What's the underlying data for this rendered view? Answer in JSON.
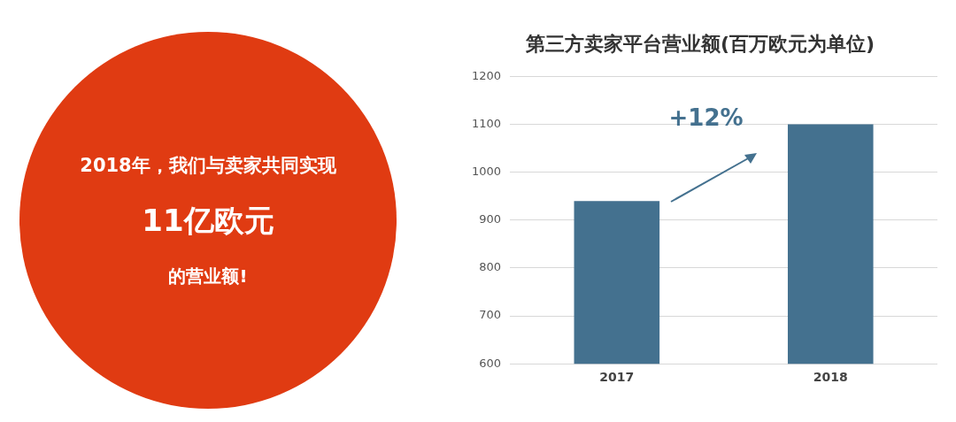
{
  "chart_data": [
    {
      "type": "other",
      "annotations": [
        "2018年，我们与卖家共同实现",
        "11亿欧元",
        "的营业额!"
      ]
    },
    {
      "type": "bar",
      "title": "第三方卖家平台营业额(百万欧元为单位)",
      "categories": [
        "2017",
        "2018"
      ],
      "values": [
        940,
        1100
      ],
      "color": "#44718f",
      "ylim": [
        600,
        1200
      ],
      "yticks": [
        600,
        700,
        800,
        900,
        1000,
        1100,
        1200
      ],
      "grid": "y",
      "annotations": [
        "+12%"
      ]
    }
  ]
}
